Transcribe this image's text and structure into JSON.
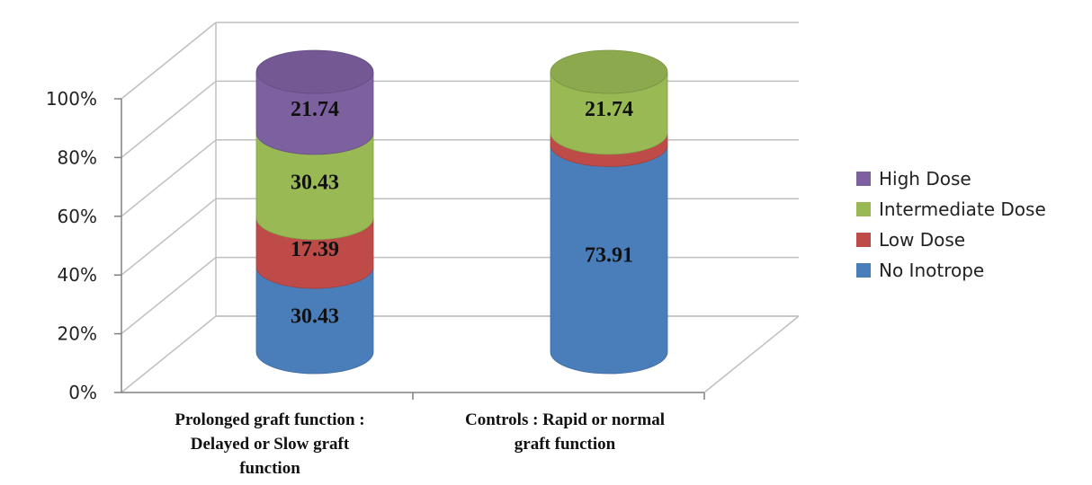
{
  "chart_data": {
    "type": "bar",
    "stacked": true,
    "percent_stacked": true,
    "style": "3d-cylinder",
    "categories": [
      [
        "Prolonged graft function  :",
        "Delayed or Slow graft",
        "function"
      ],
      [
        "Controls : Rapid or normal",
        "graft function"
      ]
    ],
    "series": [
      {
        "name": "No Inotrope",
        "color": "#4a7ebb",
        "values": [
          30.43,
          73.91
        ],
        "labels": [
          "30.43",
          "73.91"
        ]
      },
      {
        "name": "Low Dose",
        "color": "#be4b48",
        "values": [
          17.39,
          4.35
        ],
        "labels": [
          "17.39",
          ""
        ]
      },
      {
        "name": "Intermediate Dose",
        "color": "#98b954",
        "values": [
          30.43,
          21.74
        ],
        "labels": [
          "30.43",
          "21.74"
        ]
      },
      {
        "name": "High Dose",
        "color": "#7d60a0",
        "values": [
          21.74,
          0
        ],
        "labels": [
          "21.74",
          ""
        ]
      }
    ],
    "yticks": [
      "0%",
      "20%",
      "40%",
      "60%",
      "80%",
      "100%"
    ],
    "ylim": [
      0,
      100
    ],
    "legend_position": "right",
    "legend_order": [
      "High Dose",
      "Intermediate Dose",
      "Low Dose",
      "No Inotrope"
    ],
    "grid": true,
    "title": "",
    "xlabel": "",
    "ylabel": ""
  }
}
